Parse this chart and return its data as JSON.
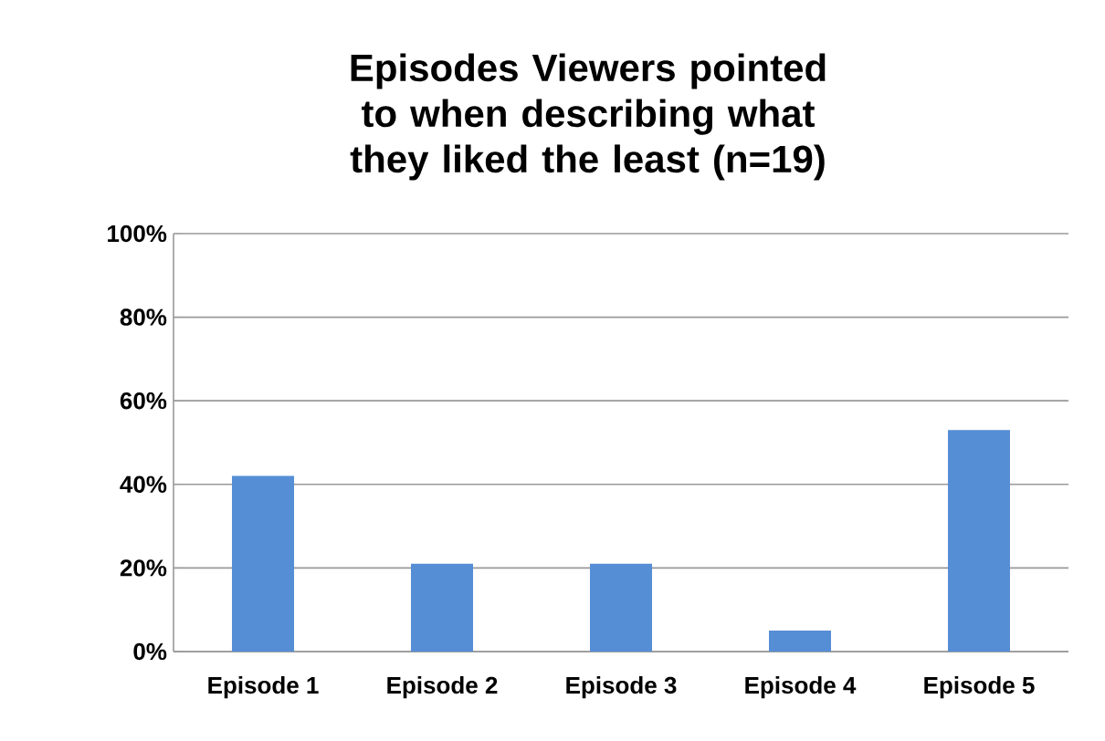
{
  "chart_data": {
    "type": "bar",
    "title": "Episodes Viewers pointed to when describing what they liked the least (n=19)",
    "categories": [
      "Episode 1",
      "Episode 2",
      "Episode 3",
      "Episode 4",
      "Episode 5"
    ],
    "values": [
      42,
      21,
      21,
      5,
      53
    ],
    "color": "#558ed5",
    "ylim": [
      0,
      100
    ],
    "yticks": [
      {
        "value": 0,
        "label": "0%"
      },
      {
        "value": 20,
        "label": "20%"
      },
      {
        "value": 40,
        "label": "40%"
      },
      {
        "value": 60,
        "label": "60%"
      },
      {
        "value": 80,
        "label": "80%"
      },
      {
        "value": 100,
        "label": "100%"
      }
    ],
    "grid": "y"
  }
}
